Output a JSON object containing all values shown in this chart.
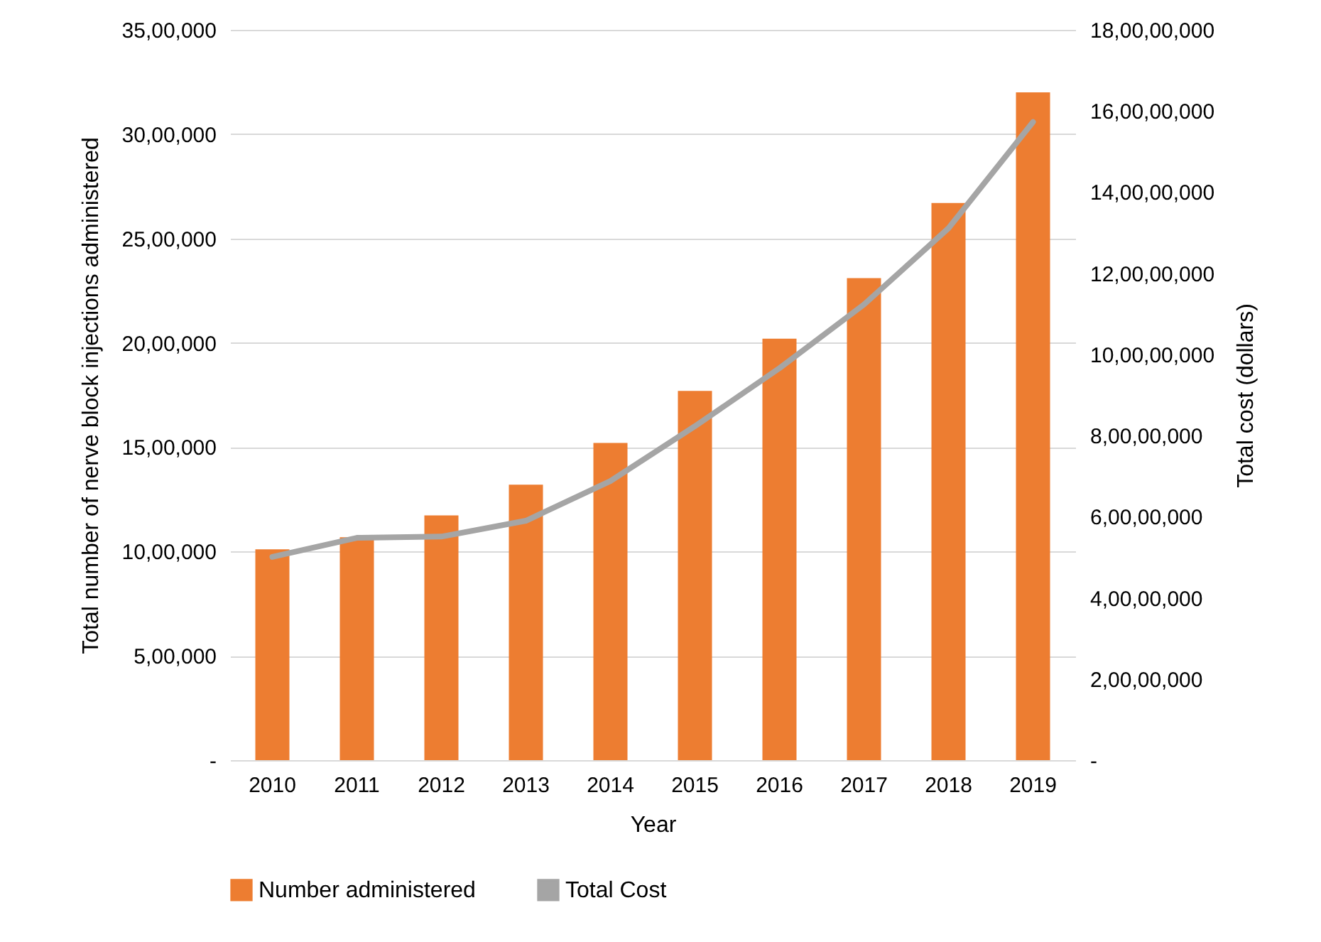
{
  "chart_data": {
    "type": "bar",
    "xlabel": "Year",
    "ylabel": "Total number of  nerve block injections administered",
    "y2label": "Total cost (dollars)",
    "categories": [
      "2010",
      "2011",
      "2012",
      "2013",
      "2014",
      "2015",
      "2016",
      "2017",
      "2018",
      "2019"
    ],
    "series": [
      {
        "name": "Number administered",
        "color": "#ed7d31",
        "values": [
          1010000,
          1068000,
          1173000,
          1320000,
          1520000,
          1770000,
          2020000,
          2310000,
          2670000,
          3200000
        ]
      },
      {
        "name": "Total Cost",
        "type": "line",
        "axis": "y2",
        "color": "#a5a5a5",
        "values": [
          50100000,
          54800000,
          55100000,
          59000000,
          68800000,
          82300000,
          96600000,
          112300000,
          131100000,
          157300000
        ]
      }
    ],
    "ylim": [
      0,
      3500000
    ],
    "yticks": [
      {
        "value": 0,
        "label": "-"
      },
      {
        "value": 500000,
        "label": "5,00,000"
      },
      {
        "value": 1000000,
        "label": "10,00,000"
      },
      {
        "value": 1500000,
        "label": "15,00,000"
      },
      {
        "value": 2000000,
        "label": "20,00,000"
      },
      {
        "value": 2500000,
        "label": "25,00,000"
      },
      {
        "value": 3000000,
        "label": "30,00,000"
      },
      {
        "value": 3500000,
        "label": "35,00,000"
      }
    ],
    "y2lim": [
      0,
      180000000
    ],
    "y2ticks": [
      {
        "value": 0,
        "label": "-"
      },
      {
        "value": 20000000,
        "label": "2,00,00,000"
      },
      {
        "value": 40000000,
        "label": "4,00,00,000"
      },
      {
        "value": 60000000,
        "label": "6,00,00,000"
      },
      {
        "value": 80000000,
        "label": "8,00,00,000"
      },
      {
        "value": 100000000,
        "label": "10,00,00,000"
      },
      {
        "value": 120000000,
        "label": "12,00,00,000"
      },
      {
        "value": 140000000,
        "label": "14,00,00,000"
      },
      {
        "value": 160000000,
        "label": "16,00,00,000"
      },
      {
        "value": 180000000,
        "label": "18,00,00,000"
      }
    ],
    "grid": "y",
    "legend": "bottom"
  }
}
